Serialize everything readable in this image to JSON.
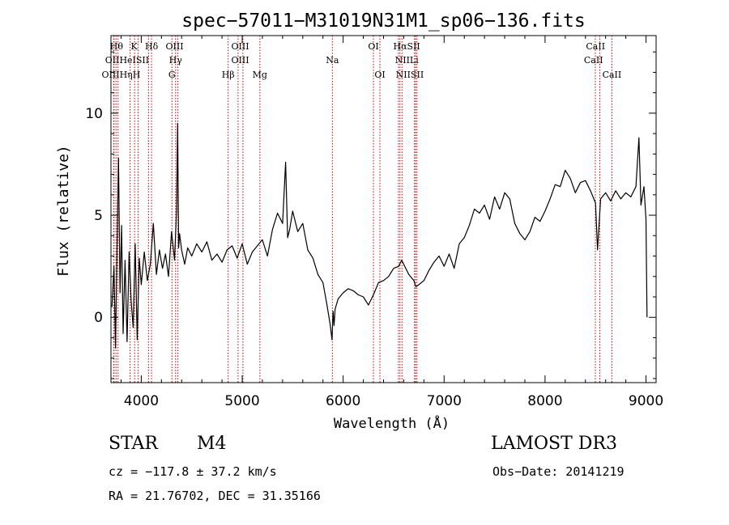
{
  "chart_data": {
    "type": "line",
    "title": "spec−57011−M31019N31M1_sp06−136.fits",
    "xlabel": "Wavelength (Å)",
    "ylabel": "Flux (relative)",
    "xlim": [
      3700,
      9100
    ],
    "ylim": [
      -3.2,
      13.8
    ],
    "xticks": [
      4000,
      5000,
      6000,
      7000,
      8000,
      9000
    ],
    "yticks": [
      0,
      5,
      10
    ],
    "series": [
      {
        "name": "spectrum",
        "x": [
          3710,
          3730,
          3745,
          3760,
          3775,
          3790,
          3805,
          3820,
          3840,
          3860,
          3880,
          3900,
          3920,
          3940,
          3960,
          3980,
          4000,
          4030,
          4060,
          4090,
          4120,
          4150,
          4180,
          4210,
          4240,
          4270,
          4300,
          4330,
          4350,
          4360,
          4370,
          4380,
          4400,
          4430,
          4460,
          4500,
          4550,
          4600,
          4650,
          4700,
          4750,
          4800,
          4850,
          4900,
          4950,
          5000,
          5050,
          5100,
          5150,
          5200,
          5250,
          5300,
          5350,
          5400,
          5430,
          5450,
          5470,
          5500,
          5550,
          5600,
          5650,
          5700,
          5750,
          5800,
          5840,
          5870,
          5890,
          5900,
          5910,
          5920,
          5950,
          6000,
          6050,
          6100,
          6150,
          6200,
          6250,
          6300,
          6350,
          6400,
          6450,
          6500,
          6550,
          6580,
          6600,
          6650,
          6700,
          6720,
          6750,
          6800,
          6850,
          6900,
          6950,
          7000,
          7050,
          7100,
          7150,
          7200,
          7250,
          7300,
          7350,
          7400,
          7450,
          7500,
          7550,
          7600,
          7650,
          7700,
          7750,
          7800,
          7850,
          7900,
          7950,
          8000,
          8050,
          8100,
          8150,
          8200,
          8250,
          8300,
          8350,
          8400,
          8450,
          8500,
          8520,
          8550,
          8600,
          8650,
          8700,
          8750,
          8800,
          8850,
          8900,
          8930,
          8950,
          8980,
          9000,
          9010
        ],
        "y": [
          0.5,
          2.5,
          -1.5,
          3.5,
          7.8,
          1.2,
          4.5,
          -0.8,
          2.8,
          -1.2,
          3.2,
          0.8,
          -0.5,
          3.6,
          -1.1,
          2.9,
          1.6,
          3.2,
          1.8,
          2.6,
          4.6,
          2.1,
          3.3,
          2.4,
          3.1,
          2.0,
          4.2,
          2.8,
          5.3,
          9.5,
          3.4,
          4.1,
          3.3,
          2.6,
          3.4,
          3.0,
          3.6,
          3.2,
          3.7,
          2.8,
          3.1,
          2.7,
          3.3,
          3.5,
          2.9,
          3.6,
          2.6,
          3.2,
          3.5,
          3.8,
          3.0,
          4.3,
          5.1,
          4.6,
          7.6,
          3.9,
          4.3,
          5.2,
          4.2,
          4.6,
          3.3,
          2.9,
          2.1,
          1.7,
          0.6,
          -0.3,
          -1.1,
          0.3,
          -0.4,
          0.4,
          0.9,
          1.2,
          1.4,
          1.3,
          1.1,
          1.0,
          0.6,
          1.1,
          1.7,
          1.8,
          2.0,
          2.4,
          2.5,
          2.8,
          2.6,
          2.1,
          1.8,
          1.5,
          1.6,
          1.8,
          2.3,
          2.7,
          3.0,
          2.5,
          3.1,
          2.4,
          3.6,
          3.9,
          4.5,
          5.3,
          5.1,
          5.5,
          4.8,
          5.9,
          5.3,
          6.1,
          5.8,
          4.6,
          4.1,
          3.8,
          4.2,
          4.9,
          4.7,
          5.2,
          5.8,
          6.5,
          6.4,
          7.2,
          6.8,
          6.1,
          6.6,
          6.7,
          6.2,
          5.6,
          3.3,
          5.8,
          6.1,
          5.7,
          6.2,
          5.8,
          6.1,
          5.9,
          6.4,
          8.8,
          5.5,
          6.4,
          4.8,
          0.0
        ]
      }
    ],
    "lines": [
      {
        "x": 3750,
        "label": "Hθ"
      },
      {
        "x": 3727,
        "label": "OII"
      },
      {
        "x": 3730,
        "label": "OIII"
      },
      {
        "x": 3770,
        "label": "Hη"
      },
      {
        "x": 3889,
        "label": "HeI"
      },
      {
        "x": 3934,
        "label": "K"
      },
      {
        "x": 3968,
        "label": "H"
      },
      {
        "x": 4072,
        "label": "SII"
      },
      {
        "x": 4102,
        "label": "Hδ"
      },
      {
        "x": 4304,
        "label": "G"
      },
      {
        "x": 4340,
        "label": "Hγ"
      },
      {
        "x": 4363,
        "label": "OIII"
      },
      {
        "x": 4861,
        "label": "Hβ"
      },
      {
        "x": 4959,
        "label": "OIII"
      },
      {
        "x": 5007,
        "label": "OIII"
      },
      {
        "x": 5175,
        "label": "Mg"
      },
      {
        "x": 5893,
        "label": "Na"
      },
      {
        "x": 6300,
        "label": "OI"
      },
      {
        "x": 6364,
        "label": "OI"
      },
      {
        "x": 6548,
        "label": "NII"
      },
      {
        "x": 6563,
        "label": "Hα"
      },
      {
        "x": 6583,
        "label": "NII"
      },
      {
        "x": 6707,
        "label": "Li"
      },
      {
        "x": 6717,
        "label": "SII"
      },
      {
        "x": 6731,
        "label": "SII"
      },
      {
        "x": 8498,
        "label": "CaII"
      },
      {
        "x": 8542,
        "label": "CaII"
      },
      {
        "x": 8662,
        "label": "CaII"
      }
    ],
    "line_label_text": [
      {
        "text": "Hθ",
        "x": 3755,
        "row": 0
      },
      {
        "text": "K",
        "x": 3930,
        "row": 0
      },
      {
        "text": "Hδ",
        "x": 4102,
        "row": 0
      },
      {
        "text": "OIII",
        "x": 4330,
        "row": 0
      },
      {
        "text": "OIII",
        "x": 4980,
        "row": 0
      },
      {
        "text": "OI",
        "x": 6300,
        "row": 0
      },
      {
        "text": "HαSII",
        "x": 6630,
        "row": 0
      },
      {
        "text": "CaII",
        "x": 8500,
        "row": 0
      },
      {
        "text": "OIIHeISII",
        "x": 3860,
        "row": 1
      },
      {
        "text": "Hγ",
        "x": 4340,
        "row": 1
      },
      {
        "text": "OIII",
        "x": 4980,
        "row": 1
      },
      {
        "text": "Na",
        "x": 5893,
        "row": 1
      },
      {
        "text": "NIILi",
        "x": 6630,
        "row": 1
      },
      {
        "text": "CaII",
        "x": 8480,
        "row": 1
      },
      {
        "text": "OIIIHηH",
        "x": 3800,
        "row": 2
      },
      {
        "text": "G",
        "x": 4304,
        "row": 2
      },
      {
        "text": "Hβ",
        "x": 4861,
        "row": 2
      },
      {
        "text": "Mg",
        "x": 5175,
        "row": 2
      },
      {
        "text": "OI",
        "x": 6364,
        "row": 2
      },
      {
        "text": "NIISII",
        "x": 6660,
        "row": 2
      },
      {
        "text": "CaII",
        "x": 8662,
        "row": 2
      }
    ],
    "line_color": "#cc0000"
  },
  "info": {
    "object_class": "STAR",
    "subclass": "M4",
    "survey": "LAMOST DR3",
    "cz": "cz = −117.8 ± 37.2 km/s",
    "obs_date": "Obs−Date: 20141219",
    "radec": "RA =  21.76702, DEC =  31.35166"
  }
}
